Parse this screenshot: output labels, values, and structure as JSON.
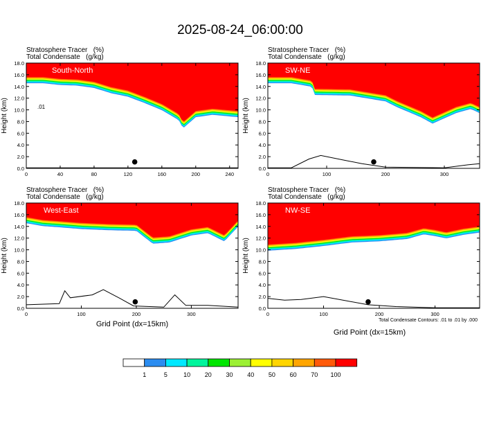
{
  "figure": {
    "title": "2025-08-24_06:00:00",
    "footnote": "Total Condensate Contours: .01 to .01 by .000"
  },
  "colorbar": {
    "labels": [
      "1",
      "5",
      "10",
      "20",
      "30",
      "40",
      "50",
      "60",
      "70",
      "100"
    ],
    "colors": [
      "#ffffff",
      "#2b8cf0",
      "#00e8ff",
      "#00f59c",
      "#00e600",
      "#9cf033",
      "#ffff00",
      "#ffd500",
      "#ffa500",
      "#ff5a0a",
      "#ff0000"
    ]
  },
  "chart_data": [
    {
      "type": "heatmap",
      "panel_label": "South-North",
      "field_labels": [
        "Stratosphere Tracer   (%)",
        "Total Condensate   (g/kg)"
      ],
      "xlabel": "",
      "ylabel": "Height (km)",
      "xlim": [
        0,
        250
      ],
      "ylim": [
        0,
        18
      ],
      "xticks": [
        0,
        40,
        80,
        120,
        160,
        200,
        240
      ],
      "yticks": [
        0.0,
        2.0,
        4.0,
        6.0,
        8.0,
        10.0,
        12.0,
        14.0,
        16.0,
        18.0
      ],
      "tracer_boundary_height_km": [
        [
          0,
          15.6
        ],
        [
          20,
          15.6
        ],
        [
          40,
          15.3
        ],
        [
          60,
          15.2
        ],
        [
          80,
          14.8
        ],
        [
          100,
          13.9
        ],
        [
          120,
          13.3
        ],
        [
          140,
          12.2
        ],
        [
          160,
          11.0
        ],
        [
          180,
          9.3
        ],
        [
          185,
          7.9
        ],
        [
          200,
          9.8
        ],
        [
          220,
          10.2
        ],
        [
          250,
          9.8
        ]
      ],
      "terrain_height_km": [
        [
          0,
          0.1
        ],
        [
          250,
          0.1
        ]
      ],
      "contour_label": ".01",
      "marker": [
        128,
        1.1
      ]
    },
    {
      "type": "heatmap",
      "panel_label": "SW-NE",
      "field_labels": [
        "Stratosphere Tracer   (%)",
        "Total Condensate   (g/kg)"
      ],
      "xlabel": "",
      "ylabel": "Height (km)",
      "xlim": [
        0,
        360
      ],
      "ylim": [
        0,
        18
      ],
      "xticks": [
        0,
        100,
        200,
        300
      ],
      "yticks": [
        0.0,
        2.0,
        4.0,
        6.0,
        8.0,
        10.0,
        12.0,
        14.0,
        16.0,
        18.0
      ],
      "tracer_boundary_height_km": [
        [
          0,
          15.6
        ],
        [
          40,
          15.6
        ],
        [
          75,
          15.0
        ],
        [
          80,
          13.6
        ],
        [
          140,
          13.5
        ],
        [
          200,
          12.5
        ],
        [
          220,
          11.5
        ],
        [
          260,
          9.8
        ],
        [
          280,
          8.7
        ],
        [
          320,
          10.5
        ],
        [
          345,
          11.2
        ],
        [
          360,
          10.5
        ]
      ],
      "terrain_height_km": [
        [
          0,
          0.1
        ],
        [
          40,
          0.1
        ],
        [
          70,
          1.6
        ],
        [
          90,
          2.2
        ],
        [
          130,
          1.4
        ],
        [
          160,
          0.8
        ],
        [
          200,
          0.2
        ],
        [
          300,
          0.1
        ],
        [
          340,
          0.6
        ],
        [
          360,
          0.8
        ]
      ],
      "marker": [
        180,
        1.1
      ]
    },
    {
      "type": "heatmap",
      "panel_label": "West-East",
      "field_labels": [
        "Stratosphere Tracer   (%)",
        "Total Condensate   (g/kg)"
      ],
      "xlabel": "Grid Point (dx=15km)",
      "ylabel": "Height (km)",
      "xlim": [
        0,
        385
      ],
      "ylim": [
        0,
        18
      ],
      "xticks": [
        0,
        100,
        200,
        300
      ],
      "yticks": [
        0.0,
        2.0,
        4.0,
        6.0,
        8.0,
        10.0,
        12.0,
        14.0,
        16.0,
        18.0
      ],
      "tracer_boundary_height_km": [
        [
          0,
          15.6
        ],
        [
          30,
          15.1
        ],
        [
          60,
          14.9
        ],
        [
          100,
          14.6
        ],
        [
          150,
          14.4
        ],
        [
          200,
          14.3
        ],
        [
          230,
          12.1
        ],
        [
          260,
          12.3
        ],
        [
          300,
          13.5
        ],
        [
          330,
          13.9
        ],
        [
          360,
          12.5
        ],
        [
          385,
          15.0
        ]
      ],
      "terrain_height_km": [
        [
          0,
          0.6
        ],
        [
          60,
          0.8
        ],
        [
          70,
          3.0
        ],
        [
          80,
          1.8
        ],
        [
          120,
          2.3
        ],
        [
          140,
          3.2
        ],
        [
          170,
          1.7
        ],
        [
          195,
          0.4
        ],
        [
          250,
          0.2
        ],
        [
          270,
          2.3
        ],
        [
          290,
          0.5
        ],
        [
          330,
          0.5
        ],
        [
          385,
          0.2
        ]
      ],
      "marker": [
        198,
        1.1
      ]
    },
    {
      "type": "heatmap",
      "panel_label": "NW-SE",
      "field_labels": [
        "Stratosphere Tracer   (%)",
        "Total Condensate   (g/kg)"
      ],
      "xlabel": "Grid Point (dx=15km)",
      "ylabel": "Height (km)",
      "xlim": [
        0,
        380
      ],
      "ylim": [
        0,
        18
      ],
      "xticks": [
        0,
        100,
        200,
        300
      ],
      "yticks": [
        0.0,
        2.0,
        4.0,
        6.0,
        8.0,
        10.0,
        12.0,
        14.0,
        16.0,
        18.0
      ],
      "tracer_boundary_height_km": [
        [
          0,
          10.9
        ],
        [
          50,
          11.2
        ],
        [
          100,
          11.7
        ],
        [
          150,
          12.3
        ],
        [
          200,
          12.5
        ],
        [
          250,
          12.9
        ],
        [
          280,
          13.7
        ],
        [
          300,
          13.4
        ],
        [
          320,
          13.0
        ],
        [
          350,
          13.6
        ],
        [
          380,
          14.0
        ]
      ],
      "terrain_height_km": [
        [
          0,
          1.7
        ],
        [
          30,
          1.4
        ],
        [
          60,
          1.5
        ],
        [
          100,
          2.0
        ],
        [
          140,
          1.3
        ],
        [
          180,
          0.6
        ],
        [
          230,
          0.3
        ],
        [
          300,
          0.1
        ],
        [
          380,
          0.1
        ]
      ],
      "marker": [
        180,
        1.1
      ]
    }
  ]
}
